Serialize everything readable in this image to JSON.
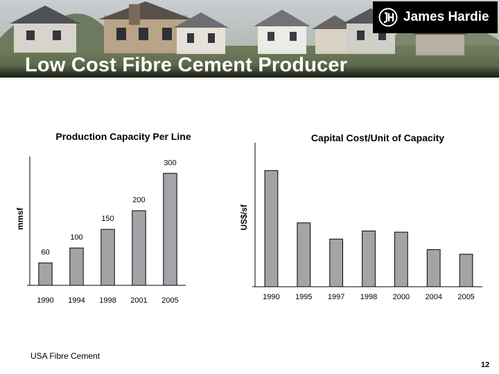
{
  "slide": {
    "title": "Low Cost Fibre Cement Producer",
    "logo_text": "James Hardie",
    "footnote": "USA Fibre Cement",
    "page_number": "12"
  },
  "colors": {
    "bar_fill": "#a3a3a8",
    "bar_stroke": "#000000",
    "title_text": "#ffffff",
    "logo_bg": "#000000"
  },
  "chart_data": [
    {
      "type": "bar",
      "title": "Production Capacity Per Line",
      "xlabel": "",
      "ylabel": "mmsf",
      "categories": [
        "1990",
        "1994",
        "1998",
        "2001",
        "2005"
      ],
      "values": [
        60,
        100,
        150,
        200,
        300
      ],
      "data_labels": [
        "60",
        "100",
        "150",
        "200",
        "300"
      ],
      "ylim": [
        0,
        345
      ],
      "grid": false,
      "legend": "none"
    },
    {
      "type": "bar",
      "title": "Capital Cost/Unit of Capacity",
      "xlabel": "",
      "ylabel": "US$/sf",
      "categories": [
        "1990",
        "1995",
        "1997",
        "1998",
        "2000",
        "2004",
        "2005"
      ],
      "values": [
        100,
        55,
        41,
        48,
        47,
        32,
        28
      ],
      "ylim": [
        0,
        124
      ],
      "grid": false,
      "legend": "none"
    }
  ]
}
